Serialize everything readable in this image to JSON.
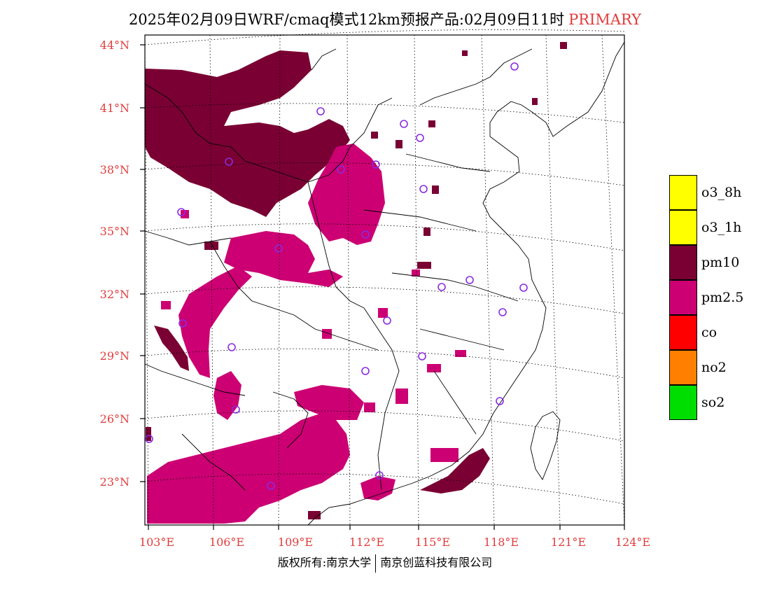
{
  "title": {
    "main": "2025年02月09日WRF/cmaq模式12km预报产品:02月09日11时",
    "tag": "PRIMARY"
  },
  "axes": {
    "lat_labels": [
      "44°N",
      "41°N",
      "38°N",
      "35°N",
      "32°N",
      "29°N",
      "26°N",
      "23°N"
    ],
    "lon_labels": [
      "103°E",
      "106°E",
      "109°E",
      "112°E",
      "115°E",
      "118°E",
      "121°E",
      "124°E"
    ],
    "label_color": "#e23b3b"
  },
  "legend": [
    {
      "label": "o3_8h",
      "color": "#ffff00"
    },
    {
      "label": "o3_1h",
      "color": "#ffff00"
    },
    {
      "label": "pm10",
      "color": "#7a0033"
    },
    {
      "label": "pm2.5",
      "color": "#cc0073"
    },
    {
      "label": "co",
      "color": "#ff0000"
    },
    {
      "label": "no2",
      "color": "#ff8000"
    },
    {
      "label": "so2",
      "color": "#00dd00"
    }
  ],
  "pollution_colors": {
    "pm10": "#7a0033",
    "pm25": "#cc0073"
  },
  "station_marker_color": "#8a2be2",
  "footer": {
    "left": "版权所有:南京大学",
    "right": "南京创蓝科技有限公司"
  }
}
